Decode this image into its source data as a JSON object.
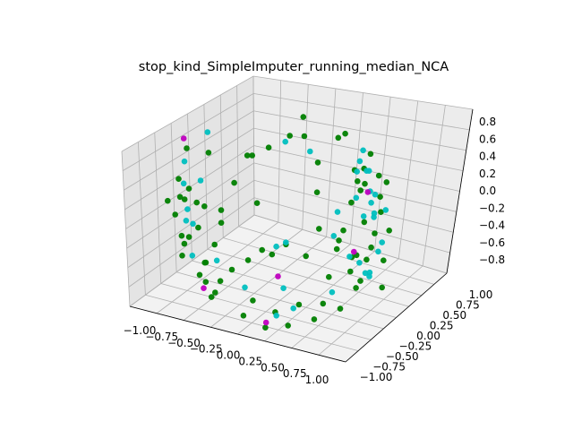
{
  "chart_data": {
    "type": "scatter3d",
    "title": "stop_kind_SimpleImputer_running_median_NCA",
    "xlim": [
      -1.1,
      1.1
    ],
    "ylim": [
      -1.1,
      1.1
    ],
    "zlim": [
      -0.95,
      0.85
    ],
    "x_ticks": [
      "−1.00",
      "−0.75",
      "−0.50",
      "−0.25",
      "0.00",
      "0.25",
      "0.50",
      "0.75",
      "1.00"
    ],
    "y_ticks": [
      "−1.00",
      "−0.75",
      "−0.50",
      "−0.25",
      "0.00",
      "0.25",
      "0.50",
      "0.75",
      "1.00"
    ],
    "z_ticks": [
      "−0.8",
      "−0.6",
      "−0.4",
      "−0.2",
      "0.0",
      "0.2",
      "0.4",
      "0.6",
      "0.8"
    ],
    "grid": true,
    "colors": {
      "pane_left": "#e4e4e4",
      "pane_back": "#ececec",
      "pane_floor": "#f2f2f2"
    },
    "series": [
      {
        "color": "#008000",
        "points": [
          [
            -0.9,
            -0.6,
            0.1
          ],
          [
            -0.88,
            -0.5,
            -0.1
          ],
          [
            -0.85,
            -0.45,
            0.3
          ],
          [
            -0.8,
            -0.55,
            -0.3
          ],
          [
            -0.92,
            -0.3,
            0.0
          ],
          [
            -0.78,
            -0.6,
            -0.5
          ],
          [
            -0.7,
            -0.65,
            0.2
          ],
          [
            -0.65,
            -0.7,
            -0.2
          ],
          [
            -0.6,
            -0.75,
            0.4
          ],
          [
            -0.55,
            -0.72,
            -0.6
          ],
          [
            -0.5,
            -0.8,
            0.0
          ],
          [
            -0.45,
            -0.78,
            -0.4
          ],
          [
            -0.4,
            -0.85,
            0.3
          ],
          [
            -0.35,
            -0.82,
            -0.7
          ],
          [
            -0.3,
            -0.88,
            -0.1
          ],
          [
            -0.25,
            -0.9,
            -0.5
          ],
          [
            -0.2,
            -0.92,
            0.2
          ],
          [
            -0.1,
            -0.95,
            -0.3
          ],
          [
            0.0,
            -0.96,
            -0.8
          ],
          [
            0.1,
            -0.95,
            -0.6
          ],
          [
            0.2,
            -0.92,
            -0.9
          ],
          [
            0.3,
            -0.9,
            -0.7
          ],
          [
            0.4,
            -0.85,
            -0.85
          ],
          [
            0.5,
            -0.8,
            -0.6
          ],
          [
            -0.95,
            -0.2,
            -0.6
          ],
          [
            -0.9,
            0.0,
            -0.2
          ],
          [
            -0.85,
            0.2,
            0.3
          ],
          [
            -0.8,
            0.3,
            -0.4
          ],
          [
            -0.9,
            -0.15,
            0.5
          ],
          [
            -0.7,
            -0.3,
            -0.7
          ],
          [
            -0.6,
            -0.5,
            -0.8
          ],
          [
            -0.5,
            -0.6,
            -0.9
          ],
          [
            -0.3,
            -0.2,
            -0.6
          ],
          [
            -0.2,
            -0.1,
            -0.5
          ],
          [
            0.0,
            -0.3,
            -0.4
          ],
          [
            0.1,
            -0.2,
            -0.3
          ],
          [
            0.2,
            0.0,
            -0.5
          ],
          [
            0.3,
            0.1,
            -0.2
          ],
          [
            -0.4,
            0.2,
            0.4
          ],
          [
            -0.3,
            0.35,
            0.45
          ],
          [
            0.0,
            0.5,
            0.6
          ],
          [
            0.1,
            0.55,
            0.3
          ],
          [
            0.4,
            0.6,
            -0.1
          ],
          [
            0.5,
            0.55,
            0.2
          ],
          [
            0.6,
            0.5,
            0.4
          ],
          [
            0.7,
            0.45,
            -0.3
          ],
          [
            0.8,
            0.4,
            0.0
          ],
          [
            0.85,
            0.3,
            -0.5
          ],
          [
            0.9,
            0.2,
            0.3
          ],
          [
            0.92,
            0.1,
            -0.7
          ],
          [
            0.88,
            0.0,
            -0.2
          ],
          [
            0.85,
            -0.1,
            0.5
          ],
          [
            0.8,
            -0.2,
            -0.6
          ],
          [
            0.75,
            -0.3,
            0.1
          ],
          [
            0.7,
            -0.35,
            -0.8
          ],
          [
            0.65,
            -0.45,
            -0.4
          ],
          [
            0.6,
            -0.5,
            -0.7
          ],
          [
            0.55,
            -0.6,
            -0.85
          ],
          [
            0.9,
            0.35,
            0.4
          ],
          [
            0.95,
            0.25,
            -0.1
          ],
          [
            0.6,
            0.65,
            0.5
          ],
          [
            0.7,
            0.6,
            0.3
          ],
          [
            0.5,
            0.7,
            0.1
          ],
          [
            0.3,
            0.75,
            0.6
          ],
          [
            0.2,
            0.8,
            0.5
          ],
          [
            0.4,
            0.3,
            -0.4
          ],
          [
            0.3,
            0.45,
            -0.6
          ],
          [
            0.2,
            0.3,
            0.1
          ],
          [
            -0.1,
            0.7,
            0.7
          ],
          [
            -0.2,
            0.6,
            0.5
          ],
          [
            -0.6,
            0.5,
            0.2
          ],
          [
            -0.7,
            0.4,
            -0.1
          ],
          [
            -0.5,
            0.45,
            -0.3
          ],
          [
            0.75,
            0.15,
            -0.45
          ],
          [
            0.65,
            0.2,
            -0.75
          ],
          [
            0.55,
            0.35,
            -0.55
          ],
          [
            0.45,
            0.45,
            -0.65
          ],
          [
            0.85,
            -0.4,
            -0.3
          ],
          [
            0.92,
            -0.2,
            0.2
          ],
          [
            0.7,
            0.1,
            0.6
          ]
        ]
      },
      {
        "color": "#00bfbf",
        "points": [
          [
            -0.85,
            -0.35,
            0.2
          ],
          [
            -0.82,
            -0.4,
            -0.2
          ],
          [
            -0.88,
            -0.25,
            0.4
          ],
          [
            -0.75,
            -0.5,
            0.0
          ],
          [
            -0.9,
            -0.1,
            -0.4
          ],
          [
            -0.8,
            0.1,
            0.6
          ],
          [
            -0.7,
            -0.55,
            -0.5
          ],
          [
            -0.5,
            -0.7,
            0.5
          ],
          [
            -0.3,
            -0.85,
            -0.3
          ],
          [
            0.0,
            -0.9,
            -0.5
          ],
          [
            0.3,
            -0.88,
            -0.75
          ],
          [
            0.45,
            -0.82,
            -0.65
          ],
          [
            0.6,
            0.55,
            0.35
          ],
          [
            0.65,
            0.5,
            0.15
          ],
          [
            0.7,
            0.4,
            0.45
          ],
          [
            0.75,
            0.35,
            -0.05
          ],
          [
            0.8,
            0.3,
            0.25
          ],
          [
            0.85,
            0.2,
            -0.35
          ],
          [
            0.88,
            0.1,
            0.15
          ],
          [
            0.85,
            0.0,
            -0.5
          ],
          [
            0.8,
            -0.1,
            0.4
          ],
          [
            0.75,
            -0.2,
            -0.25
          ],
          [
            0.7,
            -0.3,
            0.3
          ],
          [
            0.65,
            -0.4,
            -0.6
          ],
          [
            0.55,
            0.6,
            0.55
          ],
          [
            0.5,
            0.62,
            0.4
          ],
          [
            0.45,
            0.65,
            0.25
          ],
          [
            0.9,
            0.3,
            0.1
          ],
          [
            0.92,
            0.15,
            -0.2
          ],
          [
            0.4,
            0.2,
            -0.3
          ],
          [
            0.1,
            0.4,
            0.5
          ],
          [
            -0.1,
            0.3,
            0.6
          ],
          [
            0.0,
            0.0,
            -0.4
          ],
          [
            -0.2,
            0.2,
            -0.6
          ],
          [
            0.15,
            -0.4,
            -0.7
          ],
          [
            0.6,
            0.3,
            -0.6
          ],
          [
            0.72,
            0.25,
            -0.7
          ],
          [
            0.78,
            0.05,
            -0.55
          ],
          [
            0.68,
            0.45,
            0.05
          ],
          [
            0.58,
            0.48,
            -0.15
          ]
        ]
      },
      {
        "color": "#bf00bf",
        "points": [
          [
            -0.85,
            -0.3,
            0.7
          ],
          [
            -0.6,
            -0.55,
            -0.85
          ],
          [
            0.2,
            -0.9,
            -0.85
          ],
          [
            0.8,
            0.15,
            0.35
          ],
          [
            0.5,
            0.4,
            -0.55
          ],
          [
            0.0,
            -0.2,
            -0.7
          ]
        ]
      }
    ]
  }
}
